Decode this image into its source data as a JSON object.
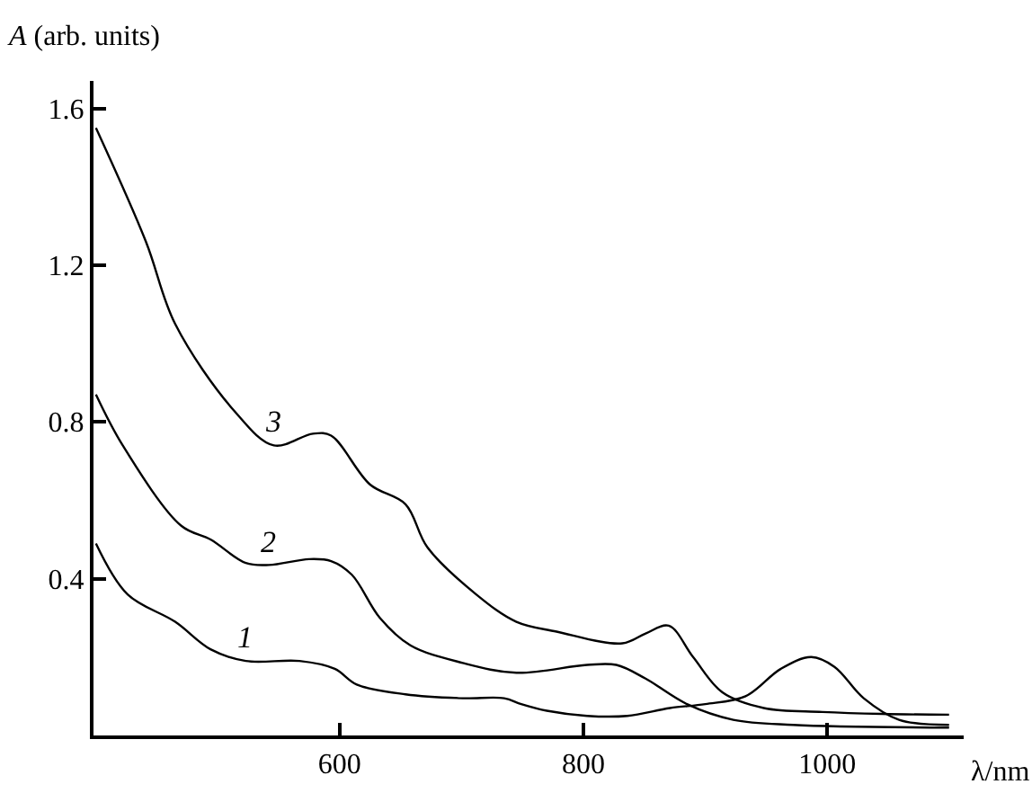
{
  "chart_data": {
    "type": "line",
    "xlabel": "λ/nm",
    "ylabel": "A (arb. units)",
    "xlim": [
      398,
      1112
    ],
    "ylim": [
      0,
      1.67
    ],
    "xticks": [
      600,
      800,
      1000
    ],
    "yticks": [
      0.4,
      0.8,
      1.2,
      1.6
    ],
    "legend": false,
    "marker": "none",
    "line_style": "solid",
    "series": [
      {
        "name": "1",
        "color": "#000000",
        "x": [
          400,
          426,
          465,
          494,
          523,
          567,
          596,
          614,
          654,
          701,
          735,
          749,
          770,
          803,
          836,
          871,
          900,
          933,
          962,
          987,
          1006,
          1030,
          1059,
          1100
        ],
        "values": [
          0.49,
          0.36,
          0.29,
          0.22,
          0.19,
          0.19,
          0.17,
          0.13,
          0.105,
          0.095,
          0.095,
          0.08,
          0.063,
          0.05,
          0.05,
          0.07,
          0.08,
          0.1,
          0.17,
          0.2,
          0.175,
          0.095,
          0.04,
          0.027
        ]
      },
      {
        "name": "2",
        "color": "#000000",
        "x": [
          400,
          422,
          470,
          494,
          523,
          542,
          575,
          593,
          610,
          633,
          658,
          701,
          745,
          803,
          827,
          851,
          885,
          923,
          972,
          1100
        ],
        "values": [
          0.87,
          0.74,
          0.535,
          0.5,
          0.44,
          0.435,
          0.45,
          0.445,
          0.41,
          0.3,
          0.23,
          0.185,
          0.16,
          0.18,
          0.18,
          0.145,
          0.08,
          0.04,
          0.027,
          0.02
        ]
      },
      {
        "name": "3",
        "color": "#000000",
        "x": [
          400,
          441,
          465,
          513,
          546,
          578,
          593,
          625,
          654,
          672,
          712,
          745,
          778,
          832,
          851,
          870,
          890,
          914,
          948,
          996,
          1045,
          1100
        ],
        "values": [
          1.55,
          1.26,
          1.05,
          0.83,
          0.74,
          0.77,
          0.765,
          0.64,
          0.59,
          0.48,
          0.36,
          0.29,
          0.265,
          0.235,
          0.26,
          0.28,
          0.2,
          0.11,
          0.07,
          0.06,
          0.055,
          0.053
        ]
      }
    ]
  }
}
